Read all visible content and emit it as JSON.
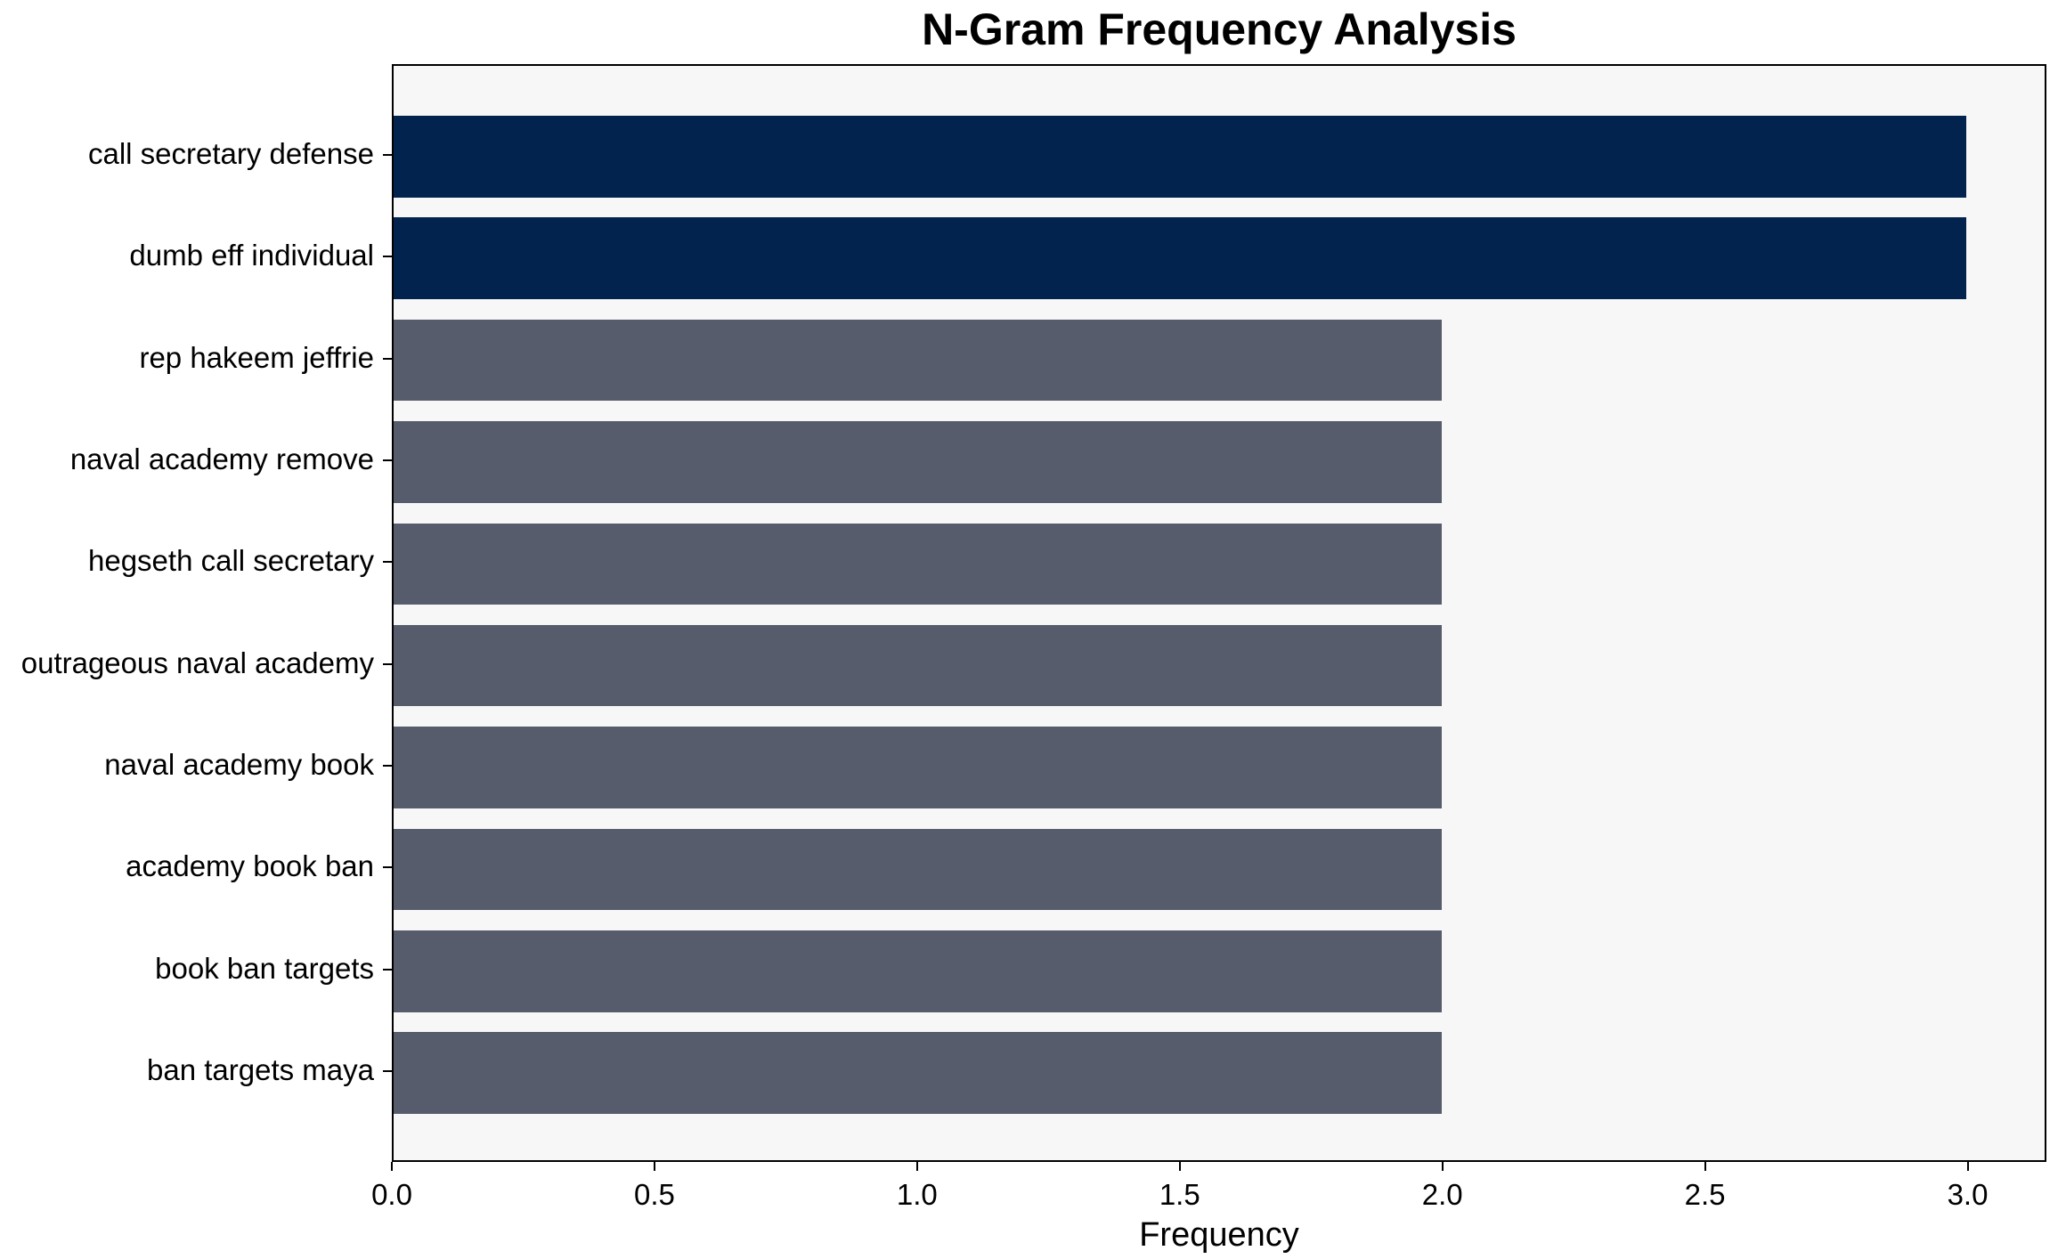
{
  "chart_data": {
    "type": "bar",
    "orientation": "horizontal",
    "title": "N-Gram Frequency Analysis",
    "xlabel": "Frequency",
    "ylabel": "",
    "categories": [
      "call secretary defense",
      "dumb eff individual",
      "rep hakeem jeffrie",
      "naval academy remove",
      "hegseth call secretary",
      "outrageous naval academy",
      "naval academy book",
      "academy book ban",
      "book ban targets",
      "ban targets maya"
    ],
    "values": [
      3,
      3,
      2,
      2,
      2,
      2,
      2,
      2,
      2,
      2
    ],
    "bar_colors": [
      "#02234d",
      "#02234d",
      "#565c6b",
      "#565c6b",
      "#565c6b",
      "#565c6b",
      "#565c6b",
      "#565c6b",
      "#565c6b",
      "#565c6b"
    ],
    "xlim": [
      0,
      3.15
    ],
    "xticks": [
      0,
      0.5,
      1,
      1.5,
      2,
      2.5,
      3
    ],
    "xtick_labels": [
      "0.0",
      "0.5",
      "1.0",
      "1.5",
      "2.0",
      "2.5",
      "3.0"
    ],
    "grid": false,
    "legend": "none",
    "colors": {
      "highlight_bar": "#02234d",
      "regular_bar": "#565c6b",
      "plot_background": "#f7f7f7",
      "figure_background": "#ffffff",
      "spine": "#000000",
      "text": "#000000"
    }
  }
}
